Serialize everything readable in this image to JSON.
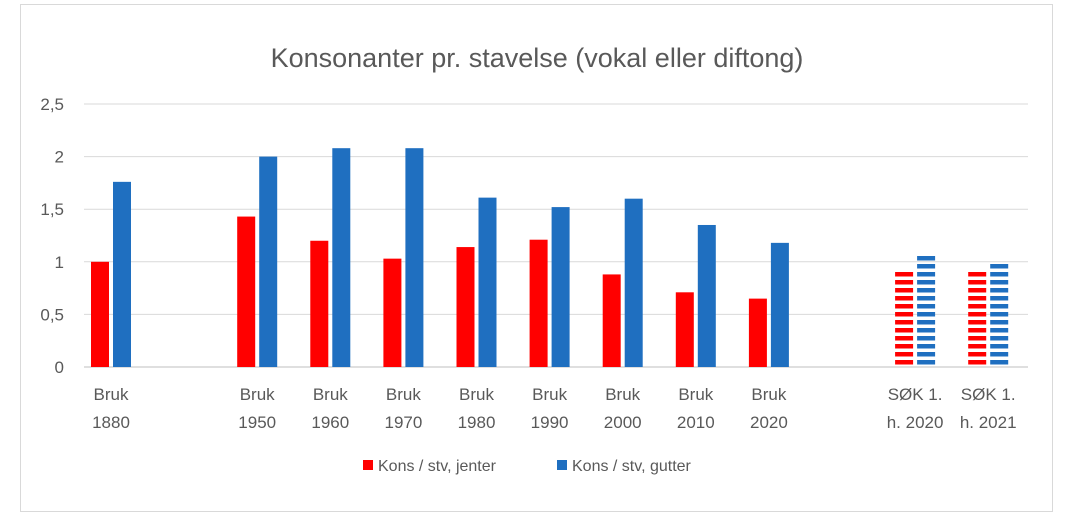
{
  "chart_data": {
    "type": "bar",
    "title": "Konsonanter pr. stavelse (vokal eller diftong)",
    "xlabel": "",
    "ylabel": "",
    "ylim": [
      0,
      2.5
    ],
    "y_ticks": [
      "0",
      "0,5",
      "1",
      "1,5",
      "2",
      "2,5"
    ],
    "grid": true,
    "legend_position": "bottom",
    "categories": [
      [
        "Bruk",
        "1880"
      ],
      [
        "Bruk",
        "1950"
      ],
      [
        "Bruk",
        "1960"
      ],
      [
        "Bruk",
        "1970"
      ],
      [
        "Bruk",
        "1980"
      ],
      [
        "Bruk",
        "1990"
      ],
      [
        "Bruk",
        "2000"
      ],
      [
        "Bruk",
        "2010"
      ],
      [
        "Bruk",
        "2020"
      ],
      [
        "SØK 1.",
        "h. 2020"
      ],
      [
        "SØK 1.",
        "h. 2021"
      ]
    ],
    "category_slots": [
      0,
      2,
      3,
      4,
      5,
      6,
      7,
      8,
      9,
      11,
      12
    ],
    "dashed_categories": [
      9,
      10
    ],
    "series": [
      {
        "name": "Kons / stv, jenter",
        "color": "#ff0000",
        "values": [
          1.0,
          1.43,
          1.2,
          1.03,
          1.14,
          1.21,
          0.88,
          0.71,
          0.65,
          0.92,
          0.92
        ]
      },
      {
        "name": "Kons / stv, gutter",
        "color": "#1f6fc0",
        "values": [
          1.76,
          2.0,
          2.08,
          2.08,
          1.61,
          1.52,
          1.6,
          1.35,
          1.18,
          1.08,
          1.0
        ]
      }
    ]
  }
}
